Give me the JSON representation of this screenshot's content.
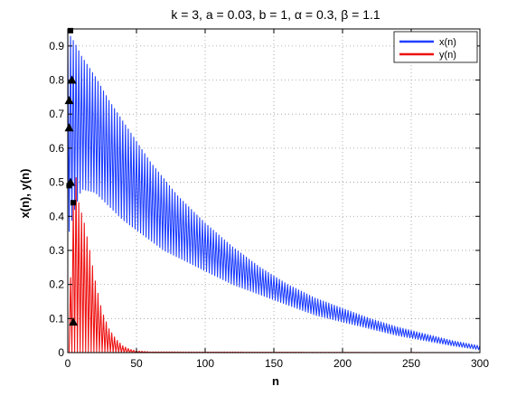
{
  "chart_data": {
    "type": "line",
    "title": "k = 3, a = 0.03, b = 1, α = 0.3, β = 1.1",
    "xlabel": "n",
    "ylabel": "x(n),  y(n)",
    "xlim": [
      0,
      300
    ],
    "ylim": [
      0,
      0.95
    ],
    "x_ticks": [
      0,
      50,
      100,
      150,
      200,
      250,
      300
    ],
    "y_ticks": [
      0,
      0.1,
      0.2,
      0.3,
      0.4,
      0.5,
      0.6,
      0.7,
      0.8,
      0.9
    ],
    "grid": true,
    "legend_position": "top-right",
    "series": [
      {
        "name": "x(n)",
        "color": "#1f3fff",
        "style": "oscillating between an upper and a lower envelope",
        "envelope_x": [
          0,
          5,
          10,
          20,
          30,
          40,
          50,
          60,
          70,
          80,
          90,
          100,
          120,
          140,
          160,
          180,
          200,
          220,
          240,
          260,
          280,
          300
        ],
        "upper": [
          0.94,
          0.91,
          0.87,
          0.81,
          0.74,
          0.68,
          0.62,
          0.56,
          0.51,
          0.46,
          0.42,
          0.38,
          0.31,
          0.25,
          0.2,
          0.16,
          0.13,
          0.1,
          0.075,
          0.055,
          0.035,
          0.02
        ],
        "lower": [
          0.34,
          0.42,
          0.48,
          0.47,
          0.43,
          0.39,
          0.36,
          0.33,
          0.3,
          0.28,
          0.26,
          0.24,
          0.2,
          0.17,
          0.14,
          0.11,
          0.09,
          0.07,
          0.05,
          0.035,
          0.02,
          0.008
        ]
      },
      {
        "name": "y(n)",
        "color": "#ee1111",
        "style": "oscillating between an upper envelope and zero",
        "envelope_x": [
          0,
          5,
          8,
          12,
          16,
          20,
          25,
          30,
          35,
          40,
          45,
          50,
          60,
          300
        ],
        "upper": [
          0.0,
          0.55,
          0.44,
          0.38,
          0.3,
          0.21,
          0.12,
          0.07,
          0.04,
          0.02,
          0.01,
          0.005,
          0.002,
          0.0
        ],
        "lower": [
          0.0,
          0.0,
          0.0,
          0.0,
          0.0,
          0.0,
          0.0,
          0.0,
          0.0,
          0.0,
          0.0,
          0.0,
          0.0,
          0.0
        ]
      }
    ],
    "markers": [
      {
        "shape": "square",
        "x": 2,
        "y": 0.945
      },
      {
        "shape": "triangle",
        "x": 3,
        "y": 0.8
      },
      {
        "shape": "triangle",
        "x": 1,
        "y": 0.74
      },
      {
        "shape": "triangle",
        "x": 1,
        "y": 0.66
      },
      {
        "shape": "square",
        "x": 1,
        "y": 0.49
      },
      {
        "shape": "triangle",
        "x": 2,
        "y": 0.5
      },
      {
        "shape": "square",
        "x": 4,
        "y": 0.44
      },
      {
        "shape": "triangle",
        "x": 4,
        "y": 0.09
      }
    ]
  }
}
